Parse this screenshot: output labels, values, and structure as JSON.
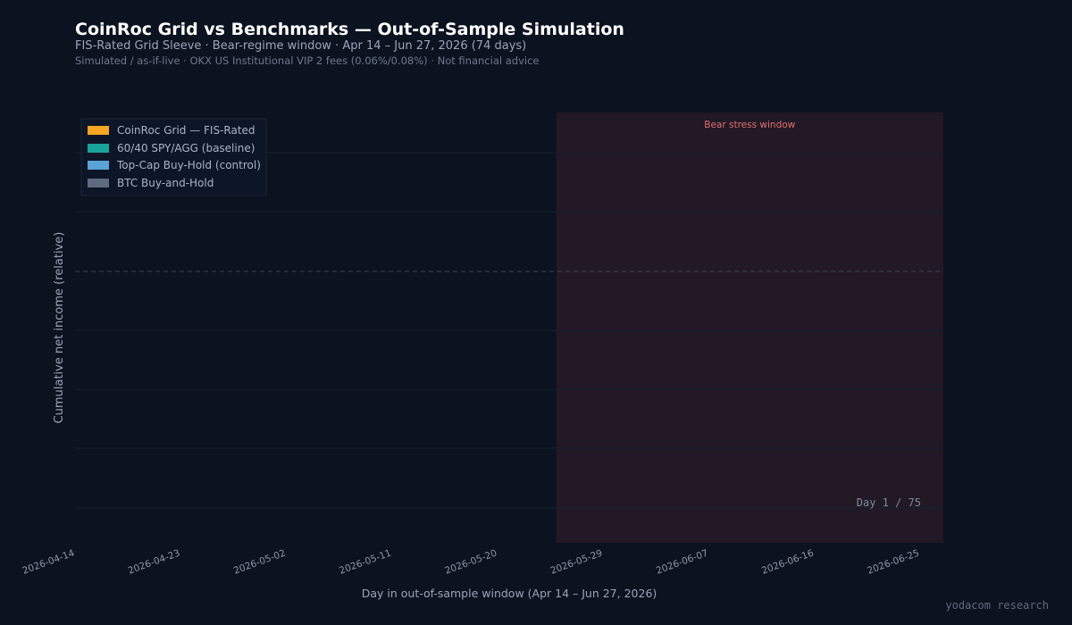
{
  "header": {
    "title": "CoinRoc Grid vs Benchmarks — Out-of-Sample Simulation",
    "subtitle": "FIS-Rated Grid Sleeve  ·  Bear-regime window  ·  Apr 14 – Jun 27, 2026  (74 days)",
    "note": "Simulated / as-if-live  ·  OKX US Institutional VIP 2 fees (0.06%/0.08%)  ·  Not financial advice"
  },
  "chart_data": {
    "type": "line",
    "title": "CoinRoc Grid vs Benchmarks — Out-of-Sample Simulation",
    "xlabel": "Day in out-of-sample window  (Apr 14 – Jun 27, 2026)",
    "ylabel": "Cumulative net income (relative)",
    "x_range": [
      "2026-04-14",
      "2026-06-27"
    ],
    "x_ticks": [
      "2026-04-14",
      "2026-04-23",
      "2026-05-02",
      "2026-05-11",
      "2026-05-20",
      "2026-05-29",
      "2026-06-07",
      "2026-06-16",
      "2026-06-25"
    ],
    "grid": true,
    "legend_position": "top-left",
    "series": [
      {
        "name": "CoinRoc Grid — FIS-Rated",
        "color": "#f5a623",
        "values": []
      },
      {
        "name": "60/40 SPY/AGG (baseline)",
        "color": "#1aa39a",
        "values": []
      },
      {
        "name": "Top-Cap Buy-Hold (control)",
        "color": "#5aa3d6",
        "values": []
      },
      {
        "name": "BTC Buy-and-Hold",
        "color": "#5d6b80",
        "values": []
      }
    ],
    "shaded_region": {
      "label": "Bear stress window",
      "start": "2026-05-25",
      "end": "2026-06-27",
      "color": "#221826",
      "label_color": "#e07070"
    },
    "reference_line": {
      "style": "dashed",
      "color": "#3a4658"
    },
    "day_counter": "Day 1 / 75"
  },
  "footer": {
    "brand": "yodacom research"
  }
}
